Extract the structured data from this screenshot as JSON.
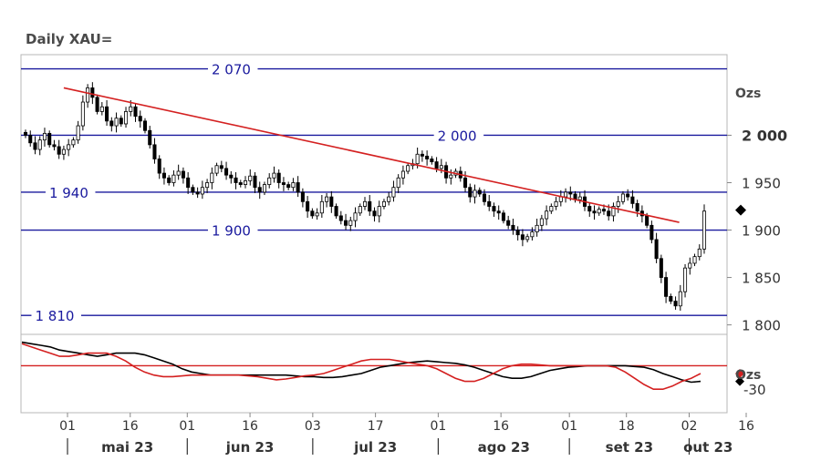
{
  "chart_data": {
    "type": "candlestick",
    "title": "Daily XAU=",
    "unit_label": "Ozs",
    "osc_unit_label": "Ozs",
    "y_ticks": [
      {
        "value": 2000,
        "label": "2 000",
        "bold": true
      },
      {
        "value": 1950,
        "label": "1 950",
        "bold": false
      },
      {
        "value": 1900,
        "label": "1 900",
        "bold": false
      },
      {
        "value": 1850,
        "label": "1 850",
        "bold": false
      },
      {
        "value": 1800,
        "label": "1 800",
        "bold": false
      }
    ],
    "ylim": [
      1790,
      2085
    ],
    "last_price_marker": 1921,
    "levels": [
      {
        "value": 2070,
        "label": "2 070",
        "label_x": 0.27
      },
      {
        "value": 2000,
        "label": "2 000",
        "label_x": 0.59
      },
      {
        "value": 1940,
        "label": "1 940",
        "label_x": 0.04
      },
      {
        "value": 1900,
        "label": "1 900",
        "label_x": 0.27
      },
      {
        "value": 1810,
        "label": "1 810",
        "label_x": 0.02
      }
    ],
    "trendline": {
      "start": {
        "x": 8,
        "y": 2050
      },
      "end": {
        "x": 132,
        "y": 1911
      }
    },
    "x_top_ticks": [
      {
        "x": 0,
        "label": "01"
      },
      {
        "x": 11,
        "label": "16"
      },
      {
        "x": 21,
        "label": "01"
      },
      {
        "x": 32,
        "label": "16"
      },
      {
        "x": 43,
        "label": "03"
      },
      {
        "x": 54,
        "label": "17"
      },
      {
        "x": 65,
        "label": "01"
      },
      {
        "x": 76,
        "label": "16"
      },
      {
        "x": 88,
        "label": "01"
      },
      {
        "x": 98,
        "label": "18"
      },
      {
        "x": 109,
        "label": "02"
      },
      {
        "x": 119,
        "label": "16"
      }
    ],
    "months": [
      {
        "start": 0,
        "end": 21,
        "label": "mai 23"
      },
      {
        "start": 21,
        "end": 43,
        "label": "jun 23"
      },
      {
        "start": 43,
        "end": 65,
        "label": "jul 23"
      },
      {
        "start": 65,
        "end": 88,
        "label": "ago 23"
      },
      {
        "start": 88,
        "end": 109,
        "label": "set 23"
      },
      {
        "start": 109,
        "end": 121,
        "label": "out 23"
      }
    ],
    "close": [
      2000,
      1992,
      1985,
      1995,
      2002,
      1990,
      1988,
      1980,
      1985,
      1990,
      1995,
      2010,
      2035,
      2050,
      2040,
      2025,
      2030,
      2015,
      2010,
      2018,
      2012,
      2025,
      2030,
      2020,
      2015,
      2005,
      1990,
      1975,
      1960,
      1955,
      1950,
      1958,
      1962,
      1955,
      1945,
      1940,
      1938,
      1945,
      1950,
      1960,
      1968,
      1965,
      1958,
      1955,
      1950,
      1948,
      1952,
      1957,
      1945,
      1940,
      1948,
      1955,
      1960,
      1950,
      1948,
      1945,
      1950,
      1940,
      1930,
      1920,
      1915,
      1918,
      1930,
      1935,
      1925,
      1915,
      1910,
      1905,
      1910,
      1918,
      1925,
      1930,
      1920,
      1915,
      1925,
      1930,
      1935,
      1945,
      1955,
      1962,
      1968,
      1970,
      1980,
      1978,
      1975,
      1972,
      1965,
      1968,
      1955,
      1958,
      1962,
      1955,
      1945,
      1935,
      1942,
      1938,
      1930,
      1925,
      1920,
      1918,
      1910,
      1905,
      1900,
      1895,
      1890,
      1893,
      1898,
      1905,
      1912,
      1920,
      1925,
      1930,
      1935,
      1940,
      1938,
      1932,
      1935,
      1925,
      1920,
      1918,
      1922,
      1920,
      1915,
      1925,
      1930,
      1938,
      1935,
      1928,
      1920,
      1915,
      1905,
      1890,
      1870,
      1850,
      1830,
      1825,
      1820,
      1835,
      1860,
      1865,
      1872,
      1880,
      1920
    ],
    "osc": {
      "ylim": [
        -60,
        40
      ],
      "reference": 0,
      "tick": {
        "value": -30,
        "label": "-30"
      },
      "black": [
        30,
        28,
        26,
        24,
        20,
        18,
        16,
        14,
        12,
        14,
        16,
        16,
        16,
        14,
        10,
        6,
        2,
        -4,
        -8,
        -10,
        -12,
        -12,
        -12,
        -12,
        -12,
        -12,
        -12,
        -12,
        -12,
        -13,
        -14,
        -14,
        -15,
        -15,
        -14,
        -12,
        -10,
        -6,
        -2,
        0,
        2,
        4,
        5,
        6,
        5,
        4,
        3,
        1,
        -2,
        -6,
        -10,
        -14,
        -16,
        -16,
        -14,
        -10,
        -6,
        -4,
        -2,
        -1,
        0,
        0,
        0,
        0,
        0,
        -1,
        -2,
        -5,
        -10,
        -14,
        -18,
        -21,
        -20
      ],
      "red": [
        28,
        24,
        20,
        16,
        12,
        12,
        14,
        16,
        16,
        16,
        12,
        6,
        -2,
        -8,
        -12,
        -14,
        -14,
        -13,
        -12,
        -12,
        -12,
        -12,
        -12,
        -12,
        -13,
        -14,
        -16,
        -18,
        -17,
        -15,
        -13,
        -12,
        -10,
        -6,
        -2,
        2,
        6,
        8,
        8,
        8,
        6,
        4,
        2,
        0,
        -4,
        -10,
        -16,
        -20,
        -20,
        -16,
        -10,
        -4,
        0,
        2,
        2,
        1,
        0,
        0,
        0,
        0,
        0,
        0,
        0,
        -2,
        -8,
        -16,
        -24,
        -30,
        -30,
        -26,
        -20,
        -16,
        -10
      ]
    }
  }
}
